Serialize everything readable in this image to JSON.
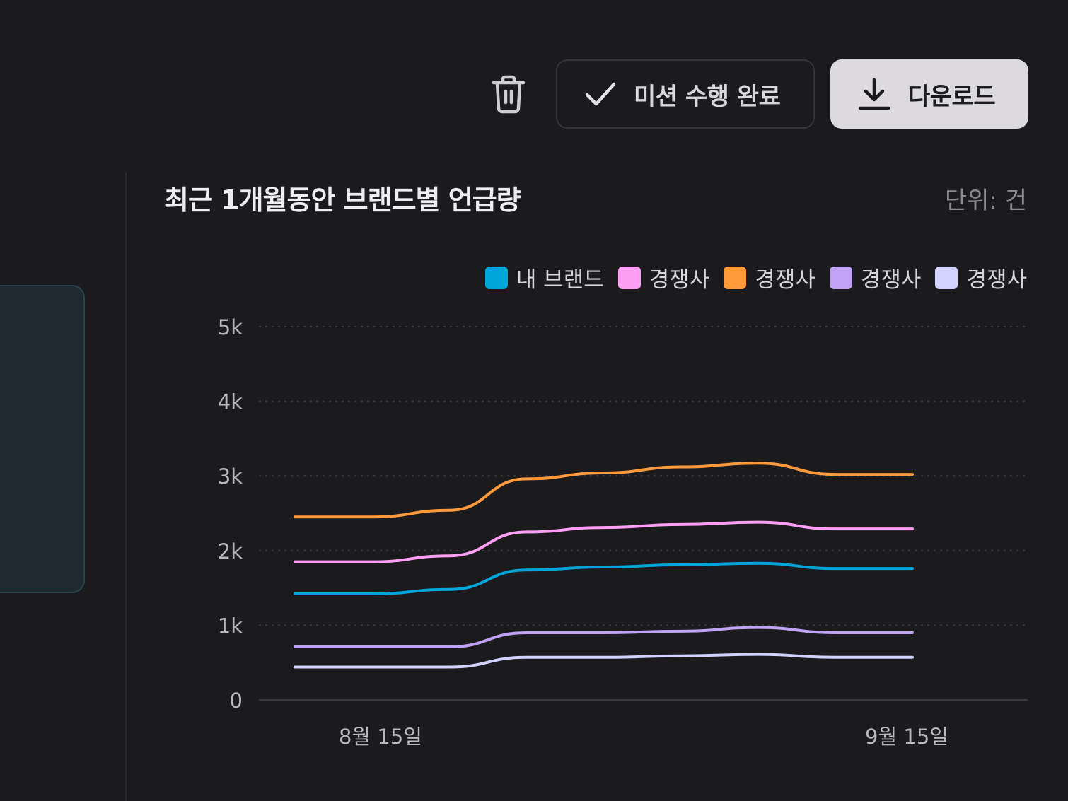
{
  "toolbar": {
    "mission_label": "미션 수행 완료",
    "download_label": "다운로드"
  },
  "chart_header": {
    "title": "최근 1개월동안 브랜드별 언급량",
    "unit": "단위: 건"
  },
  "chart_data": {
    "type": "line",
    "title": "최근 1개월동안 브랜드별 언급량",
    "unit": "단위: 건",
    "ylim": [
      0,
      5000
    ],
    "y_ticks": [
      "0",
      "1k",
      "2k",
      "3k",
      "4k",
      "5k"
    ],
    "x_ticks": [
      "8월 15일",
      "9월 15일"
    ],
    "grid": true,
    "legend_position": "top-right",
    "series": [
      {
        "name": "내 브랜드",
        "color": "#00a6d9",
        "values": [
          1420,
          1420,
          1480,
          1740,
          1780,
          1810,
          1830,
          1760,
          1760
        ]
      },
      {
        "name": "경쟁사",
        "color": "#ff9ef5",
        "values": [
          1850,
          1850,
          1930,
          2250,
          2310,
          2350,
          2380,
          2290,
          2290
        ]
      },
      {
        "name": "경쟁사",
        "color": "#ff9a3b",
        "values": [
          2450,
          2450,
          2540,
          2960,
          3040,
          3120,
          3170,
          3020,
          3020
        ]
      },
      {
        "name": "경쟁사",
        "color": "#c0a3f7",
        "values": [
          710,
          710,
          710,
          900,
          900,
          920,
          970,
          900,
          900
        ]
      },
      {
        "name": "경쟁사",
        "color": "#d3d1ff",
        "values": [
          440,
          440,
          440,
          570,
          570,
          590,
          610,
          570,
          570
        ]
      }
    ]
  }
}
